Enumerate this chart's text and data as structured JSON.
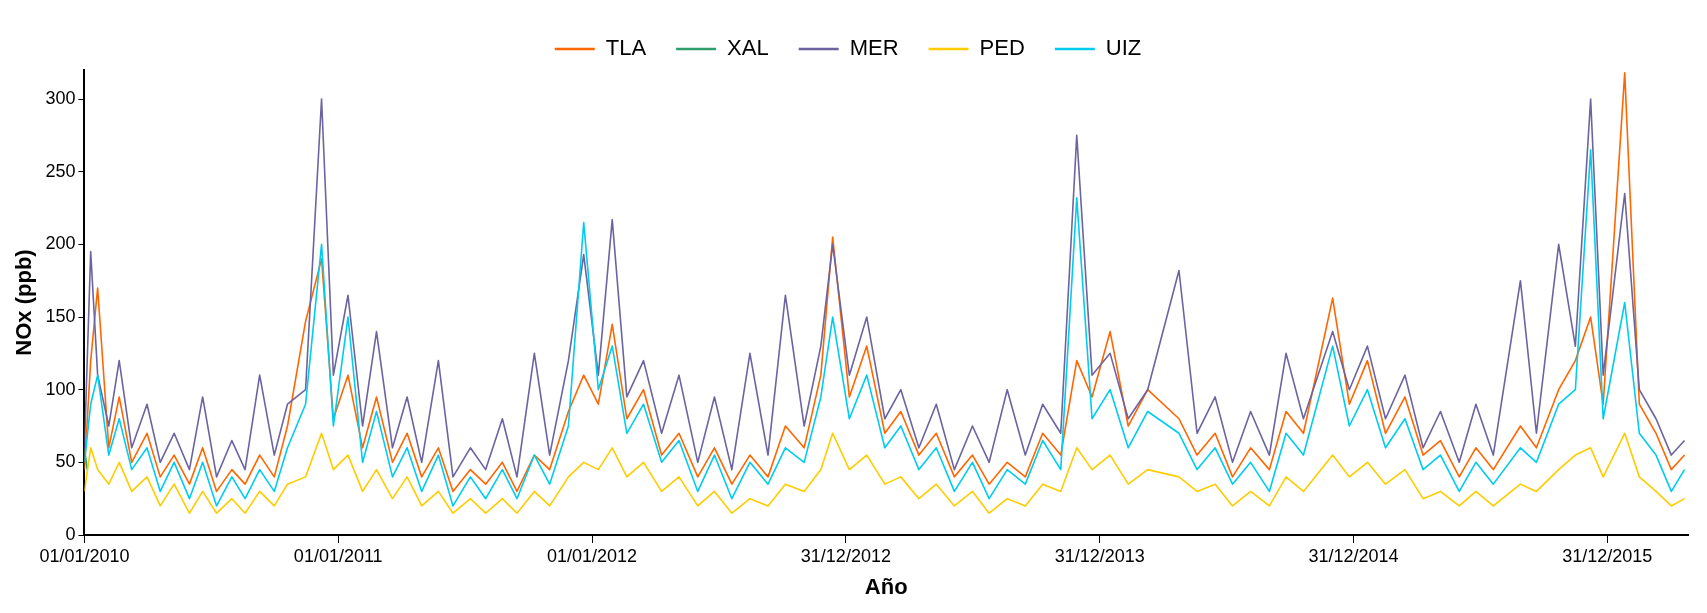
{
  "chart_data": {
    "type": "line",
    "xlabel": "Año",
    "ylabel": "NOx (ppb)",
    "legend": "top",
    "xlim": [
      "2010-01-01",
      "2016-04-25"
    ],
    "xticks": [
      {
        "value": "2010-01-01",
        "label": "01/01/2010"
      },
      {
        "value": "2011-01-01",
        "label": "01/01/2011"
      },
      {
        "value": "2012-01-01",
        "label": "01/01/2012"
      },
      {
        "value": "2012-12-31",
        "label": "31/12/2012"
      },
      {
        "value": "2013-12-31",
        "label": "31/12/2013"
      },
      {
        "value": "2014-12-31",
        "label": "31/12/2014"
      },
      {
        "value": "2015-12-31",
        "label": "31/12/2015"
      }
    ],
    "ylim": [
      0,
      320
    ],
    "yticks": [
      0,
      50,
      100,
      150,
      200,
      250,
      300
    ],
    "x": [
      "2010-01-01",
      "2010-01-10",
      "2010-01-20",
      "2010-02-05",
      "2010-02-20",
      "2010-03-10",
      "2010-04-01",
      "2010-04-20",
      "2010-05-10",
      "2010-06-01",
      "2010-06-20",
      "2010-07-10",
      "2010-08-01",
      "2010-08-20",
      "2010-09-10",
      "2010-10-01",
      "2010-10-20",
      "2010-11-15",
      "2010-12-08",
      "2010-12-25",
      "2011-01-15",
      "2011-02-05",
      "2011-02-25",
      "2011-03-20",
      "2011-04-10",
      "2011-05-01",
      "2011-05-25",
      "2011-06-15",
      "2011-07-10",
      "2011-08-01",
      "2011-08-25",
      "2011-09-15",
      "2011-10-10",
      "2011-11-01",
      "2011-11-28",
      "2011-12-20",
      "2012-01-10",
      "2012-01-30",
      "2012-02-20",
      "2012-03-15",
      "2012-04-10",
      "2012-05-05",
      "2012-06-01",
      "2012-06-25",
      "2012-07-20",
      "2012-08-15",
      "2012-09-10",
      "2012-10-05",
      "2012-11-01",
      "2012-11-25",
      "2012-12-12",
      "2013-01-05",
      "2013-01-30",
      "2013-02-25",
      "2013-03-20",
      "2013-04-15",
      "2013-05-10",
      "2013-06-05",
      "2013-07-01",
      "2013-07-25",
      "2013-08-20",
      "2013-09-15",
      "2013-10-10",
      "2013-11-05",
      "2013-11-28",
      "2013-12-20",
      "2014-01-15",
      "2014-02-10",
      "2014-03-10",
      "2014-04-24",
      "2014-05-20",
      "2014-06-15",
      "2014-07-10",
      "2014-08-05",
      "2014-09-01",
      "2014-09-25",
      "2014-10-20",
      "2014-12-01",
      "2014-12-25",
      "2015-01-20",
      "2015-02-15",
      "2015-03-15",
      "2015-04-10",
      "2015-05-05",
      "2015-06-01",
      "2015-06-25",
      "2015-07-20",
      "2015-08-28",
      "2015-09-20",
      "2015-10-22",
      "2015-11-15",
      "2015-12-07",
      "2015-12-25",
      "2016-01-25",
      "2016-02-15",
      "2016-03-10",
      "2016-04-01",
      "2016-04-20"
    ],
    "series": [
      {
        "name": "TLA",
        "color": "#ff6600",
        "values": [
          45,
          120,
          170,
          60,
          95,
          50,
          70,
          40,
          55,
          35,
          60,
          30,
          45,
          35,
          55,
          40,
          75,
          147,
          190,
          80,
          110,
          60,
          95,
          50,
          70,
          40,
          60,
          30,
          45,
          35,
          50,
          30,
          55,
          45,
          85,
          110,
          90,
          145,
          80,
          100,
          55,
          70,
          40,
          60,
          35,
          55,
          40,
          75,
          60,
          110,
          205,
          95,
          130,
          70,
          85,
          55,
          70,
          40,
          55,
          35,
          50,
          40,
          70,
          55,
          120,
          95,
          140,
          75,
          100,
          80,
          55,
          70,
          40,
          60,
          45,
          85,
          70,
          163,
          90,
          120,
          70,
          95,
          55,
          65,
          40,
          60,
          45,
          75,
          60,
          100,
          120,
          150,
          90,
          318,
          90,
          70,
          45,
          55
        ]
      },
      {
        "name": "XAL",
        "color": "#2e9e6e",
        "x": [
          "2010-01-01",
          "2010-01-05"
        ],
        "values": [
          60,
          45
        ]
      },
      {
        "name": "MER",
        "color": "#6b64a0",
        "values": [
          60,
          195,
          110,
          75,
          120,
          60,
          90,
          50,
          70,
          45,
          95,
          40,
          65,
          45,
          110,
          55,
          90,
          100,
          300,
          110,
          165,
          75,
          140,
          60,
          95,
          50,
          120,
          40,
          60,
          45,
          80,
          40,
          125,
          55,
          120,
          193,
          110,
          217,
          95,
          120,
          70,
          110,
          50,
          95,
          45,
          125,
          55,
          165,
          75,
          130,
          200,
          110,
          150,
          80,
          100,
          60,
          90,
          45,
          75,
          50,
          100,
          55,
          90,
          70,
          275,
          110,
          125,
          80,
          100,
          182,
          70,
          95,
          50,
          85,
          55,
          125,
          80,
          140,
          100,
          130,
          80,
          110,
          60,
          85,
          50,
          90,
          55,
          175,
          70,
          200,
          130,
          300,
          110,
          235,
          100,
          80,
          55,
          65
        ]
      },
      {
        "name": "PED",
        "color": "#ffcc00",
        "values": [
          30,
          60,
          45,
          35,
          50,
          30,
          40,
          20,
          35,
          15,
          30,
          15,
          25,
          15,
          30,
          20,
          35,
          40,
          70,
          45,
          55,
          30,
          45,
          25,
          40,
          20,
          30,
          15,
          25,
          15,
          25,
          15,
          30,
          20,
          40,
          50,
          45,
          60,
          40,
          50,
          30,
          40,
          20,
          30,
          15,
          25,
          20,
          35,
          30,
          45,
          70,
          45,
          55,
          35,
          40,
          25,
          35,
          20,
          30,
          15,
          25,
          20,
          35,
          30,
          60,
          45,
          55,
          35,
          45,
          40,
          30,
          35,
          20,
          30,
          20,
          40,
          30,
          55,
          40,
          50,
          35,
          45,
          25,
          30,
          20,
          30,
          20,
          35,
          30,
          45,
          55,
          60,
          40,
          70,
          40,
          30,
          20,
          25
        ]
      },
      {
        "name": "UIZ",
        "color": "#00ccf0",
        "values": [
          50,
          90,
          110,
          55,
          80,
          45,
          60,
          30,
          50,
          25,
          50,
          20,
          40,
          25,
          45,
          30,
          60,
          90,
          200,
          75,
          150,
          50,
          85,
          40,
          60,
          30,
          55,
          20,
          40,
          25,
          45,
          25,
          55,
          35,
          75,
          215,
          100,
          130,
          70,
          90,
          50,
          65,
          30,
          55,
          25,
          50,
          35,
          60,
          50,
          95,
          150,
          80,
          110,
          60,
          75,
          45,
          60,
          30,
          50,
          25,
          45,
          35,
          65,
          45,
          232,
          80,
          100,
          60,
          85,
          70,
          45,
          60,
          35,
          50,
          30,
          70,
          55,
          130,
          75,
          100,
          60,
          80,
          45,
          55,
          30,
          50,
          35,
          60,
          50,
          90,
          100,
          265,
          80,
          160,
          70,
          55,
          30,
          45
        ]
      }
    ]
  }
}
